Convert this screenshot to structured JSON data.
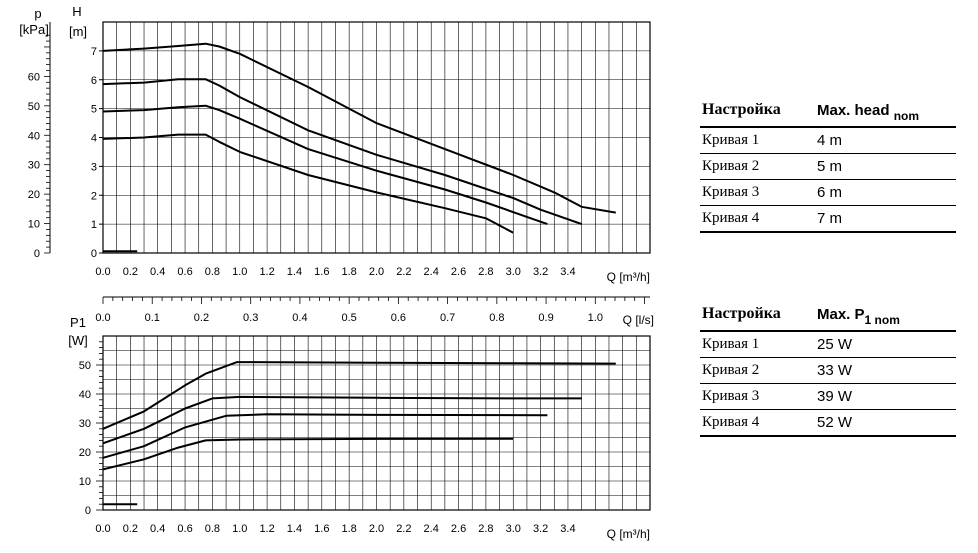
{
  "chart_data": [
    {
      "type": "line",
      "ylabel": "H",
      "yunit": "[m]",
      "ylabel2": "p",
      "yunit2": "[kPa]",
      "xunit": "Q [m³/h]",
      "xunit2": "Q [l/s]",
      "xlim": [
        0,
        4.0
      ],
      "ylim": [
        0,
        8
      ],
      "ylim2_kpa": [
        0,
        78.48
      ],
      "yticks": [
        0,
        1,
        2,
        3,
        4,
        5,
        6,
        7
      ],
      "yticks2": [
        0,
        10,
        20,
        30,
        40,
        50,
        60
      ],
      "xticks": [
        "0.0",
        "0.2",
        "0.4",
        "0.6",
        "0.8",
        "1.0",
        "1.2",
        "1.4",
        "1.6",
        "1.8",
        "2.0",
        "2.2",
        "2.4",
        "2.6",
        "2.8",
        "3.0",
        "3.2",
        "3.4"
      ],
      "xticks2": [
        "0.0",
        "0.1",
        "0.2",
        "0.3",
        "0.4",
        "0.5",
        "0.6",
        "0.7",
        "0.8",
        "0.9",
        "1.0"
      ],
      "grid": true,
      "series": [
        {
          "values": [
            [
              0,
              7.0
            ],
            [
              0.3,
              7.08
            ],
            [
              0.55,
              7.17
            ],
            [
              0.75,
              7.25
            ],
            [
              0.85,
              7.15
            ],
            [
              1.0,
              6.9
            ],
            [
              1.5,
              5.75
            ],
            [
              2.0,
              4.5
            ],
            [
              2.5,
              3.6
            ],
            [
              3.0,
              2.7
            ],
            [
              3.3,
              2.1
            ],
            [
              3.5,
              1.6
            ],
            [
              3.75,
              1.4
            ]
          ]
        },
        {
          "values": [
            [
              0,
              5.85
            ],
            [
              0.3,
              5.9
            ],
            [
              0.55,
              6.02
            ],
            [
              0.75,
              6.02
            ],
            [
              0.85,
              5.8
            ],
            [
              1.0,
              5.4
            ],
            [
              1.5,
              4.25
            ],
            [
              2.0,
              3.4
            ],
            [
              2.5,
              2.7
            ],
            [
              3.0,
              1.9
            ],
            [
              3.2,
              1.5
            ],
            [
              3.5,
              1.0
            ]
          ]
        },
        {
          "values": [
            [
              0,
              4.9
            ],
            [
              0.3,
              4.95
            ],
            [
              0.55,
              5.05
            ],
            [
              0.75,
              5.1
            ],
            [
              0.85,
              4.95
            ],
            [
              1.0,
              4.65
            ],
            [
              1.5,
              3.6
            ],
            [
              2.0,
              2.85
            ],
            [
              2.5,
              2.2
            ],
            [
              2.8,
              1.75
            ],
            [
              3.1,
              1.25
            ],
            [
              3.25,
              1.0
            ]
          ]
        },
        {
          "values": [
            [
              0,
              3.95
            ],
            [
              0.3,
              4.0
            ],
            [
              0.55,
              4.1
            ],
            [
              0.75,
              4.1
            ],
            [
              0.85,
              3.85
            ],
            [
              1.0,
              3.5
            ],
            [
              1.5,
              2.7
            ],
            [
              2.0,
              2.1
            ],
            [
              2.5,
              1.55
            ],
            [
              2.8,
              1.2
            ],
            [
              3.0,
              0.7
            ]
          ]
        },
        {
          "values": [
            [
              0,
              0.06
            ],
            [
              0.25,
              0.06
            ]
          ]
        }
      ]
    },
    {
      "type": "line",
      "ylabel": "P1",
      "yunit": "[W]",
      "xunit": "Q [m³/h]",
      "xlim": [
        0,
        4.0
      ],
      "ylim": [
        0,
        60
      ],
      "yticks": [
        0,
        10,
        20,
        30,
        40,
        50
      ],
      "xticks": [
        "0.0",
        "0.2",
        "0.4",
        "0.6",
        "0.8",
        "1.0",
        "1.2",
        "1.4",
        "1.6",
        "1.8",
        "2.0",
        "2.2",
        "2.4",
        "2.6",
        "2.8",
        "3.0",
        "3.2",
        "3.4"
      ],
      "grid": true,
      "series": [
        {
          "values": [
            [
              0,
              28
            ],
            [
              0.3,
              34
            ],
            [
              0.6,
              43
            ],
            [
              0.75,
              47
            ],
            [
              0.98,
              51
            ],
            [
              2.0,
              50.8
            ],
            [
              3.0,
              50.6
            ],
            [
              3.75,
              50.5
            ]
          ]
        },
        {
          "values": [
            [
              0,
              23
            ],
            [
              0.3,
              28
            ],
            [
              0.6,
              35
            ],
            [
              0.8,
              38.5
            ],
            [
              1.0,
              39
            ],
            [
              2.0,
              38.7
            ],
            [
              3.0,
              38.5
            ],
            [
              3.5,
              38.5
            ]
          ]
        },
        {
          "values": [
            [
              0,
              18
            ],
            [
              0.3,
              22
            ],
            [
              0.6,
              28.5
            ],
            [
              0.9,
              32.5
            ],
            [
              1.2,
              33
            ],
            [
              2.0,
              32.8
            ],
            [
              3.25,
              32.7
            ]
          ]
        },
        {
          "values": [
            [
              0,
              14
            ],
            [
              0.3,
              17.5
            ],
            [
              0.55,
              21.5
            ],
            [
              0.75,
              24
            ],
            [
              1.0,
              24.3
            ],
            [
              2.0,
              24.5
            ],
            [
              3.0,
              24.6
            ]
          ]
        },
        {
          "values": [
            [
              0,
              2
            ],
            [
              0.25,
              2
            ]
          ]
        }
      ]
    }
  ],
  "tables": {
    "head_table": {
      "header": {
        "col1": "Настройка",
        "col2": "Max. head",
        "col2_sub": "nom"
      },
      "rows": [
        {
          "col1": "Кривая 1",
          "col2": "4 m"
        },
        {
          "col1": "Кривая 2",
          "col2": "5 m"
        },
        {
          "col1": "Кривая 3",
          "col2": "6 m"
        },
        {
          "col1": "Кривая 4",
          "col2": "7 m"
        }
      ]
    },
    "power_table": {
      "header": {
        "col1": "Настройка",
        "col2": "Max. P",
        "col2_sub": "1 nom"
      },
      "rows": [
        {
          "col1": "Кривая 1",
          "col2": "25 W"
        },
        {
          "col1": "Кривая 2",
          "col2": "33 W"
        },
        {
          "col1": "Кривая 3",
          "col2": "39 W"
        },
        {
          "col1": "Кривая 4",
          "col2": "52 W"
        }
      ]
    }
  }
}
